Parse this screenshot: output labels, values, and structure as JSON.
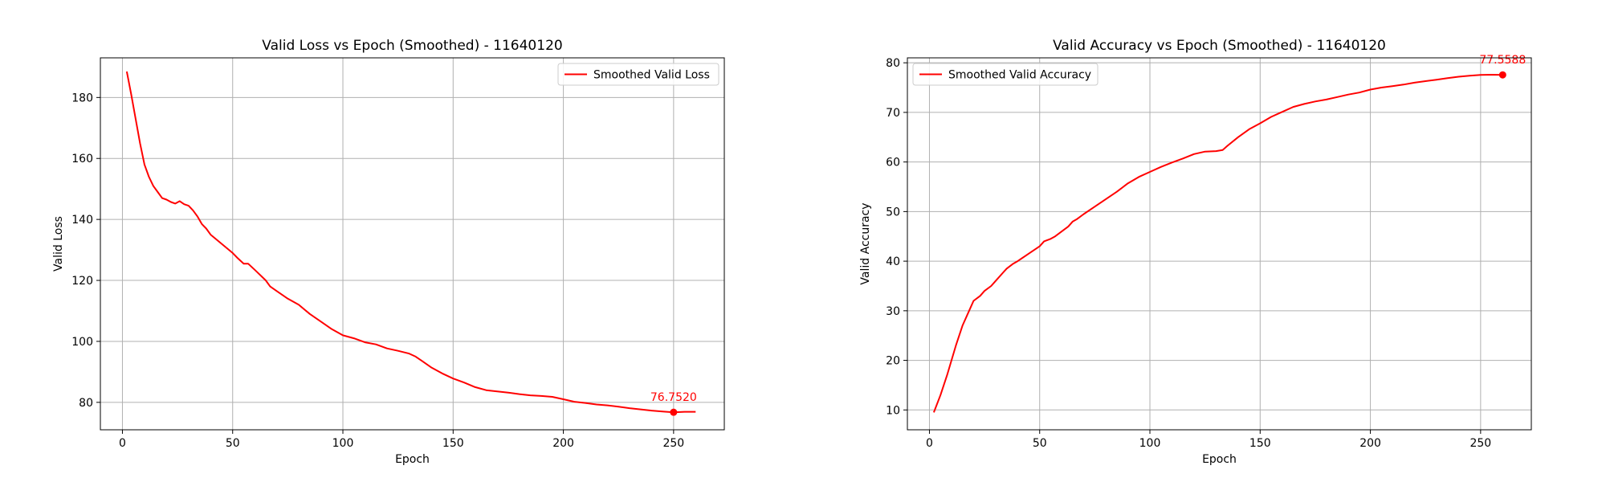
{
  "chart_data": [
    {
      "type": "line",
      "title": "Valid Loss vs Epoch (Smoothed) - 11640120",
      "xlabel": "Epoch",
      "ylabel": "Valid Loss",
      "xlim": [
        -10,
        273
      ],
      "ylim": [
        71,
        193
      ],
      "xticks": [
        0,
        50,
        100,
        150,
        200,
        250
      ],
      "yticks": [
        80,
        100,
        120,
        140,
        160,
        180
      ],
      "grid": true,
      "legend_position": "top-right",
      "color": "#ff0000",
      "series": [
        {
          "name": "Smoothed Valid Loss",
          "x": [
            2,
            4,
            6,
            8,
            10,
            12,
            14,
            16,
            18,
            20,
            22,
            24,
            26,
            28,
            30,
            32,
            34,
            36,
            38,
            40,
            45,
            50,
            52,
            55,
            57,
            60,
            65,
            67,
            70,
            75,
            80,
            85,
            90,
            95,
            100,
            105,
            110,
            115,
            120,
            125,
            130,
            133,
            136,
            140,
            145,
            150,
            155,
            160,
            165,
            170,
            175,
            180,
            185,
            190,
            195,
            200,
            205,
            210,
            215,
            220,
            225,
            230,
            235,
            240,
            245,
            250,
            255,
            260
          ],
          "values": [
            188.5,
            181,
            173,
            165,
            158,
            154,
            151,
            149,
            147,
            146.5,
            145.7,
            145.2,
            146,
            145,
            144.5,
            143,
            141,
            138.5,
            137,
            135,
            132,
            129,
            127.5,
            125.5,
            125.5,
            123.5,
            120,
            118,
            116.5,
            114,
            112,
            109,
            106.5,
            104,
            102,
            101,
            99.7,
            99,
            97.7,
            96.9,
            96,
            95,
            93.5,
            91.5,
            89.5,
            87.8,
            86.5,
            85,
            84,
            83.6,
            83.2,
            82.7,
            82.3,
            82.1,
            81.8,
            81,
            80.2,
            79.8,
            79.3,
            79,
            78.6,
            78.1,
            77.7,
            77.3,
            77,
            76.752,
            76.9,
            76.9
          ]
        }
      ],
      "annotation": {
        "x": 250,
        "y": 76.752,
        "label": "76.7520"
      }
    },
    {
      "type": "line",
      "title": "Valid Accuracy vs Epoch (Smoothed) - 11640120",
      "xlabel": "Epoch",
      "ylabel": "Valid Accuracy",
      "xlim": [
        -10,
        273
      ],
      "ylim": [
        6,
        81
      ],
      "xticks": [
        0,
        50,
        100,
        150,
        200,
        250
      ],
      "yticks": [
        10,
        20,
        30,
        40,
        50,
        60,
        70,
        80
      ],
      "grid": true,
      "legend_position": "top-left",
      "color": "#ff0000",
      "series": [
        {
          "name": "Smoothed Valid Accuracy",
          "x": [
            2,
            5,
            8,
            10,
            12,
            15,
            18,
            20,
            23,
            25,
            28,
            30,
            33,
            35,
            38,
            40,
            45,
            50,
            52,
            55,
            57,
            60,
            63,
            65,
            67,
            70,
            75,
            80,
            85,
            90,
            95,
            100,
            105,
            110,
            115,
            120,
            125,
            130,
            133,
            135,
            140,
            145,
            150,
            155,
            160,
            165,
            170,
            175,
            180,
            185,
            190,
            195,
            200,
            205,
            210,
            215,
            220,
            225,
            230,
            235,
            240,
            245,
            250,
            255,
            260
          ],
          "values": [
            9.5,
            13,
            17,
            20,
            23,
            27,
            30,
            32,
            33,
            34,
            35,
            36,
            37.5,
            38.5,
            39.5,
            40,
            41.5,
            43,
            44,
            44.5,
            45,
            46,
            47,
            48,
            48.5,
            49.5,
            51,
            52.5,
            54,
            55.7,
            57,
            58,
            59,
            59.9,
            60.7,
            61.6,
            62.1,
            62.2,
            62.4,
            63.2,
            65,
            66.6,
            67.8,
            69.1,
            70.1,
            71.1,
            71.7,
            72.2,
            72.6,
            73.1,
            73.6,
            74,
            74.6,
            75,
            75.3,
            75.6,
            76,
            76.3,
            76.6,
            76.9,
            77.2,
            77.4,
            77.5588,
            77.6,
            77.5588
          ]
        }
      ],
      "annotation": {
        "x": 260,
        "y": 77.5588,
        "label": "77.5588"
      }
    }
  ]
}
